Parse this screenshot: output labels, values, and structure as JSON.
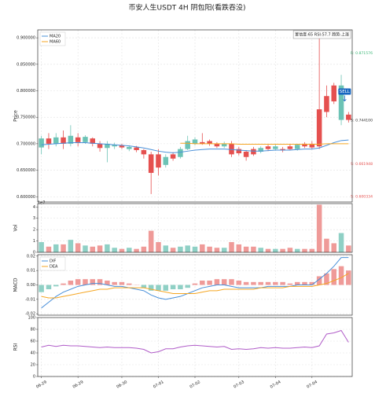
{
  "title": "币安人生USDT  4H  阴包阳(看跌吞没)",
  "chart_data": [
    {
      "type": "candlestick",
      "ylabel": "Price",
      "categories": [
        "06-29",
        null,
        null,
        null,
        null,
        "06-29",
        null,
        null,
        null,
        null,
        null,
        "06-30",
        null,
        null,
        null,
        null,
        "07-01",
        null,
        null,
        null,
        null,
        "07-02",
        null,
        null,
        null,
        null,
        null,
        "07-03",
        null,
        null,
        null,
        null,
        "07-04",
        null,
        null,
        null,
        null,
        "07-04",
        null,
        null,
        null,
        null,
        null
      ],
      "open": [
        0.693,
        0.71,
        0.7,
        0.712,
        0.7,
        0.712,
        0.703,
        0.71,
        0.7,
        0.692,
        0.695,
        0.697,
        0.69,
        0.693,
        0.688,
        0.68,
        0.68,
        0.66,
        0.68,
        0.675,
        0.69,
        0.7,
        0.703,
        0.705,
        0.7,
        0.695,
        0.7,
        0.69,
        0.685,
        0.69,
        0.685,
        0.695,
        0.69,
        0.69,
        0.695,
        0.69,
        0.7,
        0.7,
        0.765,
        0.79,
        0.81,
        0.745,
        0.755
      ],
      "high": [
        0.715,
        0.72,
        0.72,
        0.725,
        0.735,
        0.72,
        0.716,
        0.712,
        0.705,
        0.705,
        0.702,
        0.7,
        0.697,
        0.696,
        0.69,
        0.685,
        0.69,
        0.68,
        0.684,
        0.694,
        0.715,
        0.712,
        0.72,
        0.708,
        0.703,
        0.704,
        0.705,
        0.694,
        0.688,
        0.694,
        0.695,
        0.698,
        0.699,
        0.694,
        0.699,
        0.7,
        0.703,
        0.705,
        0.9,
        0.81,
        0.815,
        0.83,
        0.76
      ],
      "low": [
        0.68,
        0.69,
        0.695,
        0.69,
        0.695,
        0.695,
        0.7,
        0.695,
        0.685,
        0.665,
        0.69,
        0.69,
        0.686,
        0.684,
        0.672,
        0.605,
        0.64,
        0.655,
        0.668,
        0.672,
        0.688,
        0.697,
        0.698,
        0.696,
        0.692,
        0.692,
        0.675,
        0.678,
        0.668,
        0.677,
        0.682,
        0.686,
        0.687,
        0.684,
        0.688,
        0.687,
        0.692,
        0.69,
        0.69,
        0.75,
        0.775,
        0.735,
        0.74
      ],
      "close": [
        0.71,
        0.7,
        0.712,
        0.7,
        0.715,
        0.703,
        0.713,
        0.7,
        0.692,
        0.7,
        0.698,
        0.693,
        0.694,
        0.688,
        0.68,
        0.645,
        0.655,
        0.675,
        0.672,
        0.69,
        0.705,
        0.708,
        0.7,
        0.7,
        0.695,
        0.7,
        0.68,
        0.682,
        0.675,
        0.68,
        0.692,
        0.69,
        0.695,
        0.688,
        0.69,
        0.698,
        0.695,
        0.693,
        0.695,
        0.76,
        0.78,
        0.81,
        0.745
      ],
      "up_color": "#6cc3b5",
      "down_color": "#e5504f",
      "series": [
        {
          "name": "MA20",
          "color": "#4a90d9",
          "values": [
            0.698,
            0.699,
            0.7,
            0.701,
            0.702,
            0.702,
            0.702,
            0.701,
            0.7,
            0.699,
            0.698,
            0.697,
            0.696,
            0.694,
            0.692,
            0.689,
            0.686,
            0.684,
            0.683,
            0.684,
            0.686,
            0.688,
            0.689,
            0.69,
            0.69,
            0.69,
            0.689,
            0.688,
            0.687,
            0.686,
            0.686,
            0.687,
            0.688,
            0.688,
            0.688,
            0.689,
            0.69,
            0.69,
            0.692,
            0.697,
            0.702,
            0.706,
            0.707
          ]
        },
        {
          "name": "MA60",
          "color": "#f5a623",
          "values": [
            null,
            null,
            null,
            null,
            null,
            null,
            null,
            null,
            null,
            null,
            null,
            null,
            null,
            null,
            null,
            null,
            null,
            null,
            null,
            0.701,
            0.701,
            0.7,
            0.7,
            0.7,
            0.7,
            0.7,
            0.7,
            0.699,
            0.699,
            0.699,
            0.699,
            0.699,
            0.699,
            0.699,
            0.699,
            0.699,
            0.699,
            0.699,
            0.699,
            0.7,
            0.7,
            0.7,
            0.7
          ]
        }
      ],
      "legend": "upper left",
      "info": "置信度:65  RSI:57.7  趋势:上涨",
      "signal": "SELL",
      "signal_color": "#1565c0",
      "levels": [
        {
          "label": "R: 0.871576",
          "value": 0.871576,
          "color": "#3cb878"
        },
        {
          "label": "S: 0.744100",
          "value": 0.7441,
          "color": "#333333"
        },
        {
          "label": "S: 0.661948",
          "value": 0.661948,
          "color": "#e5504f"
        },
        {
          "label": "S: 0.600334",
          "value": 0.600334,
          "color": "#e5504f"
        }
      ],
      "ylim": [
        0.59,
        0.915
      ],
      "yticks": [
        {
          "value": 0.6,
          "label": "0.600000"
        },
        {
          "value": 0.65,
          "label": "0.650000"
        },
        {
          "value": 0.7,
          "label": "0.700000"
        },
        {
          "value": 0.75,
          "label": "0.750000"
        },
        {
          "value": 0.8,
          "label": "0.800000"
        },
        {
          "value": 0.85,
          "label": "0.850000"
        },
        {
          "value": 0.9,
          "label": "0.900000"
        }
      ],
      "grid": true
    },
    {
      "type": "volume",
      "ylabel": "Vol",
      "offset_label": "1e7",
      "values": [
        0.9,
        0.5,
        0.7,
        0.7,
        1.1,
        0.8,
        0.6,
        0.5,
        0.6,
        0.7,
        0.4,
        0.3,
        0.4,
        0.3,
        0.5,
        1.9,
        0.9,
        0.6,
        0.4,
        0.5,
        0.6,
        0.5,
        0.7,
        0.5,
        0.4,
        0.4,
        0.9,
        0.7,
        0.5,
        0.5,
        0.4,
        0.3,
        0.3,
        0.3,
        0.4,
        0.3,
        0.3,
        0.3,
        4.2,
        1.2,
        0.8,
        1.7,
        0.6
      ],
      "up_color": "#8fd0c5",
      "down_color": "#ef9a98",
      "ylim": [
        0,
        4.3
      ],
      "yticks": [
        0,
        1,
        2,
        3,
        4
      ],
      "grid": true
    },
    {
      "type": "macd",
      "ylabel": "MACD",
      "series": [
        {
          "name": "DIF",
          "color": "#4a90d9",
          "values": [
            -0.016,
            -0.012,
            -0.008,
            -0.005,
            -0.003,
            -0.001,
            0.0,
            0.001,
            0.001,
            0.0,
            -0.001,
            -0.001,
            -0.002,
            -0.003,
            -0.004,
            -0.007,
            -0.009,
            -0.01,
            -0.009,
            -0.008,
            -0.006,
            -0.004,
            -0.002,
            -0.001,
            0.0,
            0.0,
            -0.001,
            -0.002,
            -0.002,
            -0.002,
            -0.002,
            -0.001,
            -0.001,
            -0.001,
            -0.001,
            0.0,
            0.0,
            0.0,
            0.004,
            0.008,
            0.013,
            0.019,
            0.019
          ]
        },
        {
          "name": "DEA",
          "color": "#f5a623",
          "values": [
            -0.008,
            -0.009,
            -0.009,
            -0.008,
            -0.007,
            -0.006,
            -0.005,
            -0.004,
            -0.003,
            -0.003,
            -0.002,
            -0.002,
            -0.002,
            -0.002,
            -0.002,
            -0.003,
            -0.004,
            -0.005,
            -0.006,
            -0.006,
            -0.006,
            -0.006,
            -0.005,
            -0.004,
            -0.004,
            -0.003,
            -0.003,
            -0.003,
            -0.003,
            -0.003,
            -0.002,
            -0.002,
            -0.002,
            -0.002,
            -0.001,
            -0.001,
            -0.001,
            -0.001,
            0.0,
            0.001,
            0.003,
            0.005,
            0.008
          ]
        }
      ],
      "histogram": [
        -0.005,
        -0.003,
        -0.001,
        0.001,
        0.003,
        0.004,
        0.004,
        0.004,
        0.004,
        0.003,
        0.002,
        0.002,
        0.001,
        0.0,
        -0.002,
        -0.004,
        -0.004,
        -0.004,
        -0.003,
        -0.003,
        -0.002,
        0.001,
        0.003,
        0.003,
        0.004,
        0.004,
        0.004,
        0.003,
        0.002,
        0.002,
        0.002,
        0.002,
        0.002,
        0.002,
        0.001,
        0.002,
        0.002,
        0.002,
        0.006,
        0.008,
        0.011,
        0.013,
        0.01
      ],
      "pos_color": "#ef9a98",
      "neg_color": "#8fd0c5",
      "legend": "upper left",
      "ylim": [
        -0.021,
        0.021
      ],
      "yticks": [
        -0.02,
        -0.01,
        {
          "value": 0,
          "label": "0.00"
        },
        0.01,
        0.02
      ],
      "grid": true
    },
    {
      "type": "line",
      "ylabel": "RSI",
      "series": [
        {
          "color": "#b05cc8",
          "values": [
            50,
            53,
            51,
            53,
            52,
            52,
            51,
            50,
            49,
            50,
            49,
            49,
            49,
            48,
            46,
            40,
            42,
            47,
            47,
            50,
            52,
            53,
            52,
            51,
            50,
            51,
            46,
            47,
            46,
            47,
            49,
            48,
            49,
            48,
            48,
            49,
            50,
            49,
            52,
            72,
            74,
            78,
            58
          ]
        }
      ],
      "ylim": [
        0,
        100
      ],
      "yticks": [
        0,
        20,
        40,
        60,
        80,
        100
      ],
      "grid": true
    }
  ]
}
